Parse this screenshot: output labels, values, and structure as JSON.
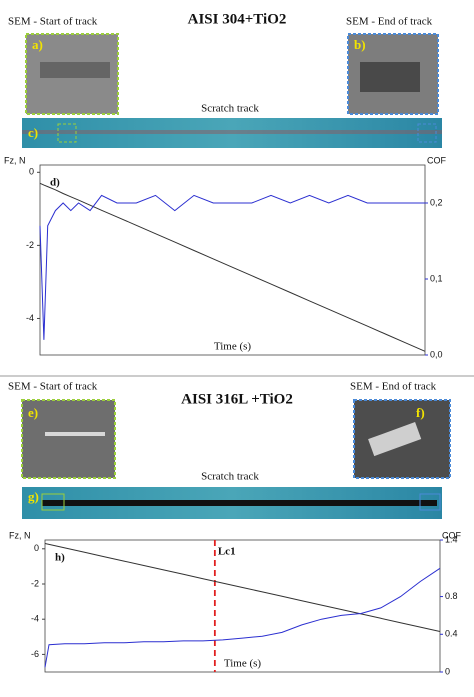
{
  "sections": [
    {
      "title": "AISI 304+TiO2",
      "sem_start": "SEM - Start of track",
      "sem_end": "SEM - End of track",
      "panels": [
        "a)",
        "b)",
        "c)"
      ],
      "track": "Scratch track"
    },
    {
      "title": "AISI 316L +TiO2",
      "sem_start": "SEM - Start of track",
      "sem_end": "SEM - End of track",
      "panels": [
        "e)",
        "f)",
        "g)"
      ],
      "track": "Scratch track"
    }
  ],
  "chart_data": [
    {
      "type": "line",
      "panel": "d)",
      "ylabel": "Fz, N",
      "y2label": "COF",
      "xlabel": "Time (s)",
      "xlim": [
        0,
        100
      ],
      "ylim": [
        -5,
        0.2
      ],
      "yticks": [
        0,
        -2,
        -4
      ],
      "y2lim": [
        0,
        0.25
      ],
      "y2ticks": [
        {
          "value": 0.2,
          "label": "0,2"
        },
        {
          "value": 0.1,
          "label": "0,1"
        },
        {
          "value": 0,
          "label": "0,0"
        }
      ],
      "x": [
        0,
        1,
        2,
        4,
        6,
        8,
        10,
        13,
        16,
        20,
        25,
        30,
        35,
        40,
        45,
        50,
        55,
        60,
        65,
        70,
        75,
        80,
        85,
        90,
        95,
        100
      ],
      "series": [
        {
          "color": "#333333",
          "values": [
            -0.3,
            -0.35,
            -0.39,
            -0.48,
            -0.58,
            -0.67,
            -0.76,
            -0.9,
            -1.04,
            -1.22,
            -1.45,
            -1.68,
            -1.91,
            -2.14,
            -2.37,
            -2.6,
            -2.83,
            -3.06,
            -3.29,
            -3.52,
            -3.75,
            -3.98,
            -4.21,
            -4.44,
            -4.67,
            -4.9
          ]
        },
        {
          "color": "#2b2fd0",
          "axis": "y2",
          "values": [
            0.17,
            0.02,
            0.17,
            0.19,
            0.2,
            0.19,
            0.2,
            0.19,
            0.21,
            0.2,
            0.2,
            0.21,
            0.19,
            0.21,
            0.2,
            0.2,
            0.2,
            0.21,
            0.2,
            0.21,
            0.2,
            0.21,
            0.2,
            0.2,
            0.2,
            0.2
          ]
        }
      ]
    },
    {
      "type": "line",
      "panel": "h)",
      "ylabel": "Fz, N",
      "y2label": "COF",
      "xlabel": "Time (s)",
      "xlim": [
        0,
        100
      ],
      "ylim": [
        -7,
        0.5
      ],
      "yticks": [
        0,
        -2,
        -4,
        -6
      ],
      "y2lim": [
        0,
        1.4
      ],
      "y2ticks": [
        1.4,
        0.8,
        0.4,
        0
      ],
      "annotation": {
        "label": "Lc1",
        "x": 43,
        "color": "#e02020"
      },
      "x": [
        0,
        1,
        5,
        10,
        15,
        20,
        25,
        30,
        35,
        40,
        45,
        50,
        55,
        60,
        65,
        70,
        75,
        80,
        85,
        90,
        95,
        100
      ],
      "series": [
        {
          "color": "#333333",
          "values": [
            0.3,
            0.25,
            0.05,
            -0.2,
            -0.45,
            -0.7,
            -0.95,
            -1.2,
            -1.45,
            -1.7,
            -1.95,
            -2.2,
            -2.45,
            -2.7,
            -2.95,
            -3.2,
            -3.45,
            -3.7,
            -3.95,
            -4.2,
            -4.45,
            -4.7
          ]
        },
        {
          "color": "#2b2fd0",
          "axis": "y2",
          "values": [
            0.05,
            0.29,
            0.3,
            0.3,
            0.31,
            0.31,
            0.32,
            0.32,
            0.33,
            0.33,
            0.34,
            0.36,
            0.38,
            0.42,
            0.5,
            0.56,
            0.6,
            0.62,
            0.68,
            0.8,
            0.96,
            1.1
          ]
        }
      ]
    }
  ]
}
